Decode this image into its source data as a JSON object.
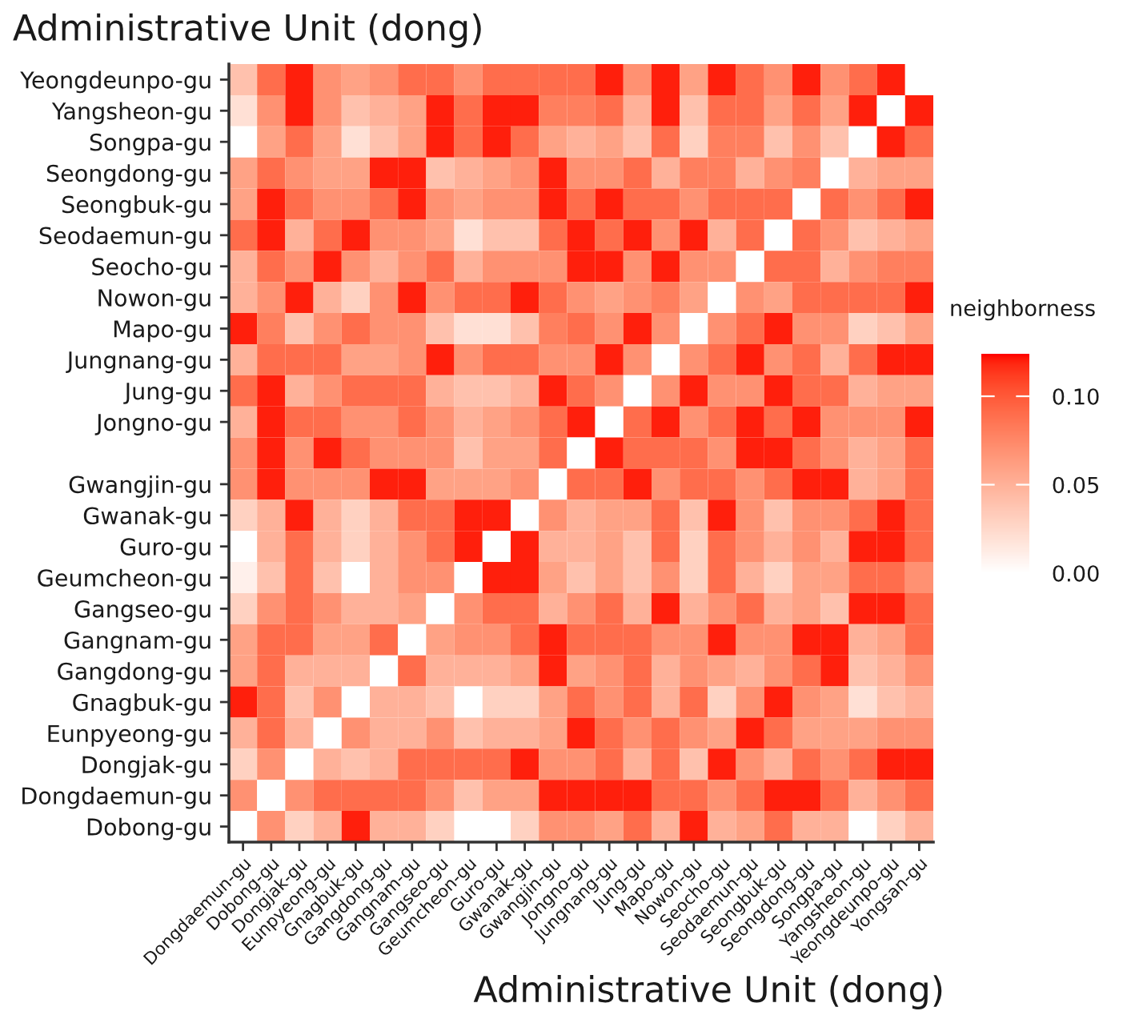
{
  "chart_data": {
    "type": "heatmap",
    "ylabel": "Administrative Unit (dong)",
    "xlabel": "Administrative Unit (dong)",
    "clabel": "neighborness",
    "categories": [
      "Dongdaemun-gu",
      "Dobong-gu",
      "Dongjak-gu",
      "Eunpyeong-gu",
      "Gnagbuk-gu",
      "Gangdong-gu",
      "Gangnam-gu",
      "Gangseo-gu",
      "Geumcheon-gu",
      "Guro-gu",
      "Gwanak-gu",
      "Gwangjin-gu",
      "Jongno-gu",
      "Jungnang-gu",
      "Jung-gu",
      "Mapo-gu",
      "Nowon-gu",
      "Seocho-gu",
      "Seodaemun-gu",
      "Seongbuk-gu",
      "Seongdong-gu",
      "Songpa-gu",
      "Yangsheon-gu",
      "Yeongdeunpo-gu",
      "Yongsan-gu"
    ],
    "y_categories": [
      "Yeongdeunpo-gu",
      "Yangsheon-gu",
      "Songpa-gu",
      "Seongdong-gu",
      "Seongbuk-gu",
      "Seodaemun-gu",
      "Seocho-gu",
      "Nowon-gu",
      "Mapo-gu",
      "Jungnang-gu",
      "Jung-gu",
      "Jongno-gu",
      null,
      "Gwangjin-gu",
      "Gwanak-gu",
      "Guro-gu",
      "Geumcheon-gu",
      "Gangseo-gu",
      "Gangnam-gu",
      "Gangdong-gu",
      "Gnagbuk-gu",
      "Eunpyeong-gu",
      "Dongjak-gu",
      "Dongdaemun-gu",
      "Dobong-gu"
    ],
    "cells": [
      [
        0.04,
        0.09,
        0.12,
        0.07,
        0.06,
        0.07,
        0.09,
        0.09,
        0.07,
        0.09,
        0.09,
        0.09,
        0.09,
        0.12,
        0.07,
        0.12,
        0.06,
        0.12,
        0.09,
        0.07,
        0.12,
        0.07,
        0.09,
        0.12,
        0.0
      ],
      [
        0.02,
        0.07,
        0.12,
        0.07,
        0.04,
        0.05,
        0.06,
        0.12,
        0.09,
        0.12,
        0.12,
        0.08,
        0.08,
        0.09,
        0.05,
        0.12,
        0.04,
        0.09,
        0.09,
        0.06,
        0.09,
        0.06,
        0.12,
        0.0,
        0.12
      ],
      [
        0.0,
        0.06,
        0.09,
        0.06,
        0.02,
        0.04,
        0.06,
        0.12,
        0.09,
        0.12,
        0.09,
        0.06,
        0.05,
        0.06,
        0.04,
        0.09,
        0.03,
        0.08,
        0.08,
        0.04,
        0.07,
        0.04,
        0.0,
        0.12,
        0.09
      ],
      [
        0.06,
        0.09,
        0.07,
        0.06,
        0.06,
        0.12,
        0.12,
        0.04,
        0.05,
        0.06,
        0.07,
        0.12,
        0.07,
        0.07,
        0.09,
        0.05,
        0.08,
        0.08,
        0.05,
        0.07,
        0.08,
        0.0,
        0.05,
        0.06,
        0.06
      ],
      [
        0.06,
        0.12,
        0.09,
        0.07,
        0.07,
        0.09,
        0.12,
        0.07,
        0.06,
        0.07,
        0.07,
        0.12,
        0.09,
        0.12,
        0.09,
        0.09,
        0.07,
        0.09,
        0.09,
        0.09,
        0.0,
        0.09,
        0.07,
        0.09,
        0.12
      ],
      [
        0.09,
        0.12,
        0.05,
        0.09,
        0.12,
        0.07,
        0.07,
        0.06,
        0.02,
        0.04,
        0.04,
        0.09,
        0.12,
        0.09,
        0.12,
        0.07,
        0.12,
        0.05,
        0.09,
        0.0,
        0.09,
        0.07,
        0.04,
        0.05,
        0.06
      ],
      [
        0.05,
        0.09,
        0.07,
        0.12,
        0.07,
        0.05,
        0.07,
        0.09,
        0.05,
        0.07,
        0.07,
        0.07,
        0.12,
        0.12,
        0.07,
        0.12,
        0.07,
        0.07,
        0.0,
        0.09,
        0.09,
        0.05,
        0.07,
        0.08,
        0.08
      ],
      [
        0.05,
        0.07,
        0.12,
        0.05,
        0.03,
        0.07,
        0.12,
        0.07,
        0.09,
        0.09,
        0.12,
        0.09,
        0.07,
        0.06,
        0.07,
        0.08,
        0.06,
        0.0,
        0.07,
        0.06,
        0.09,
        0.09,
        0.09,
        0.09,
        0.12
      ],
      [
        0.12,
        0.08,
        0.04,
        0.07,
        0.09,
        0.07,
        0.07,
        0.04,
        0.02,
        0.02,
        0.04,
        0.08,
        0.09,
        0.07,
        0.12,
        0.07,
        0.0,
        0.07,
        0.09,
        0.12,
        0.07,
        0.07,
        0.03,
        0.04,
        0.06
      ],
      [
        0.05,
        0.09,
        0.09,
        0.09,
        0.06,
        0.06,
        0.07,
        0.12,
        0.07,
        0.09,
        0.09,
        0.07,
        0.07,
        0.12,
        0.07,
        0.0,
        0.07,
        0.09,
        0.12,
        0.07,
        0.09,
        0.05,
        0.09,
        0.12,
        0.12
      ],
      [
        0.09,
        0.12,
        0.05,
        0.07,
        0.09,
        0.09,
        0.09,
        0.05,
        0.04,
        0.04,
        0.05,
        0.12,
        0.09,
        0.07,
        0.0,
        0.07,
        0.12,
        0.07,
        0.07,
        0.12,
        0.09,
        0.09,
        0.05,
        0.06,
        0.06
      ],
      [
        0.05,
        0.12,
        0.09,
        0.09,
        0.07,
        0.07,
        0.09,
        0.07,
        0.05,
        0.06,
        0.07,
        0.09,
        0.12,
        0.0,
        0.09,
        0.12,
        0.07,
        0.09,
        0.12,
        0.09,
        0.12,
        0.07,
        0.07,
        0.07,
        0.12
      ],
      [
        0.07,
        0.12,
        0.07,
        0.12,
        0.09,
        0.07,
        0.07,
        0.07,
        0.04,
        0.06,
        0.06,
        0.09,
        0.0,
        0.12,
        0.09,
        0.09,
        0.09,
        0.07,
        0.12,
        0.12,
        0.09,
        0.07,
        0.05,
        0.06,
        0.09
      ],
      [
        0.07,
        0.12,
        0.07,
        0.07,
        0.07,
        0.12,
        0.12,
        0.06,
        0.06,
        0.06,
        0.07,
        0.0,
        0.09,
        0.09,
        0.12,
        0.07,
        0.09,
        0.09,
        0.07,
        0.09,
        0.12,
        0.12,
        0.05,
        0.06,
        0.09
      ],
      [
        0.03,
        0.05,
        0.12,
        0.05,
        0.03,
        0.05,
        0.09,
        0.09,
        0.12,
        0.12,
        0.0,
        0.07,
        0.05,
        0.06,
        0.06,
        0.09,
        0.04,
        0.12,
        0.07,
        0.04,
        0.07,
        0.07,
        0.09,
        0.12,
        0.09
      ],
      [
        0.0,
        0.05,
        0.09,
        0.05,
        0.03,
        0.05,
        0.07,
        0.09,
        0.12,
        0.0,
        0.12,
        0.05,
        0.05,
        0.06,
        0.04,
        0.09,
        0.03,
        0.09,
        0.07,
        0.05,
        0.07,
        0.05,
        0.12,
        0.12,
        0.09
      ],
      [
        0.01,
        0.04,
        0.09,
        0.04,
        0.0,
        0.05,
        0.07,
        0.07,
        0.0,
        0.12,
        0.12,
        0.06,
        0.04,
        0.06,
        0.04,
        0.07,
        0.03,
        0.09,
        0.05,
        0.03,
        0.06,
        0.06,
        0.09,
        0.09,
        0.07
      ],
      [
        0.03,
        0.07,
        0.09,
        0.07,
        0.05,
        0.05,
        0.06,
        0.0,
        0.07,
        0.09,
        0.09,
        0.05,
        0.07,
        0.09,
        0.05,
        0.12,
        0.05,
        0.07,
        0.09,
        0.05,
        0.06,
        0.04,
        0.12,
        0.12,
        0.09
      ],
      [
        0.06,
        0.09,
        0.09,
        0.06,
        0.06,
        0.09,
        0.0,
        0.06,
        0.07,
        0.07,
        0.09,
        0.12,
        0.09,
        0.09,
        0.09,
        0.07,
        0.07,
        0.12,
        0.07,
        0.07,
        0.12,
        0.12,
        0.05,
        0.06,
        0.09
      ],
      [
        0.06,
        0.09,
        0.05,
        0.05,
        0.05,
        0.0,
        0.09,
        0.05,
        0.05,
        0.05,
        0.06,
        0.12,
        0.06,
        0.07,
        0.09,
        0.05,
        0.07,
        0.06,
        0.05,
        0.07,
        0.09,
        0.12,
        0.04,
        0.05,
        0.07
      ],
      [
        0.12,
        0.09,
        0.04,
        0.07,
        0.0,
        0.05,
        0.05,
        0.04,
        0.0,
        0.03,
        0.03,
        0.06,
        0.09,
        0.07,
        0.09,
        0.05,
        0.09,
        0.03,
        0.07,
        0.12,
        0.07,
        0.06,
        0.02,
        0.04,
        0.05
      ],
      [
        0.05,
        0.09,
        0.05,
        0.0,
        0.07,
        0.05,
        0.05,
        0.07,
        0.04,
        0.05,
        0.05,
        0.06,
        0.12,
        0.09,
        0.07,
        0.09,
        0.07,
        0.06,
        0.12,
        0.09,
        0.06,
        0.06,
        0.06,
        0.07,
        0.07
      ],
      [
        0.03,
        0.07,
        0.0,
        0.05,
        0.04,
        0.05,
        0.09,
        0.09,
        0.09,
        0.09,
        0.12,
        0.07,
        0.07,
        0.09,
        0.05,
        0.09,
        0.04,
        0.12,
        0.07,
        0.05,
        0.09,
        0.07,
        0.09,
        0.12,
        0.12
      ],
      [
        0.07,
        0.0,
        0.07,
        0.09,
        0.09,
        0.09,
        0.09,
        0.07,
        0.04,
        0.06,
        0.06,
        0.12,
        0.12,
        0.12,
        0.12,
        0.09,
        0.09,
        0.07,
        0.09,
        0.12,
        0.12,
        0.09,
        0.05,
        0.07,
        0.09
      ],
      [
        0.0,
        0.07,
        0.03,
        0.05,
        0.12,
        0.05,
        0.05,
        0.03,
        0.0,
        0.0,
        0.03,
        0.07,
        0.07,
        0.06,
        0.09,
        0.05,
        0.12,
        0.05,
        0.06,
        0.09,
        0.05,
        0.05,
        0.0,
        0.03,
        0.05
      ]
    ],
    "colors": [
      "#ffffff",
      "#ff0000"
    ],
    "clim": [
      0,
      0.124
    ],
    "cticks": [
      {
        "value": 0,
        "label": "0.00"
      },
      {
        "value": 0.05,
        "label": "0.05"
      },
      {
        "value": 0.1,
        "label": "0.10"
      }
    ]
  }
}
